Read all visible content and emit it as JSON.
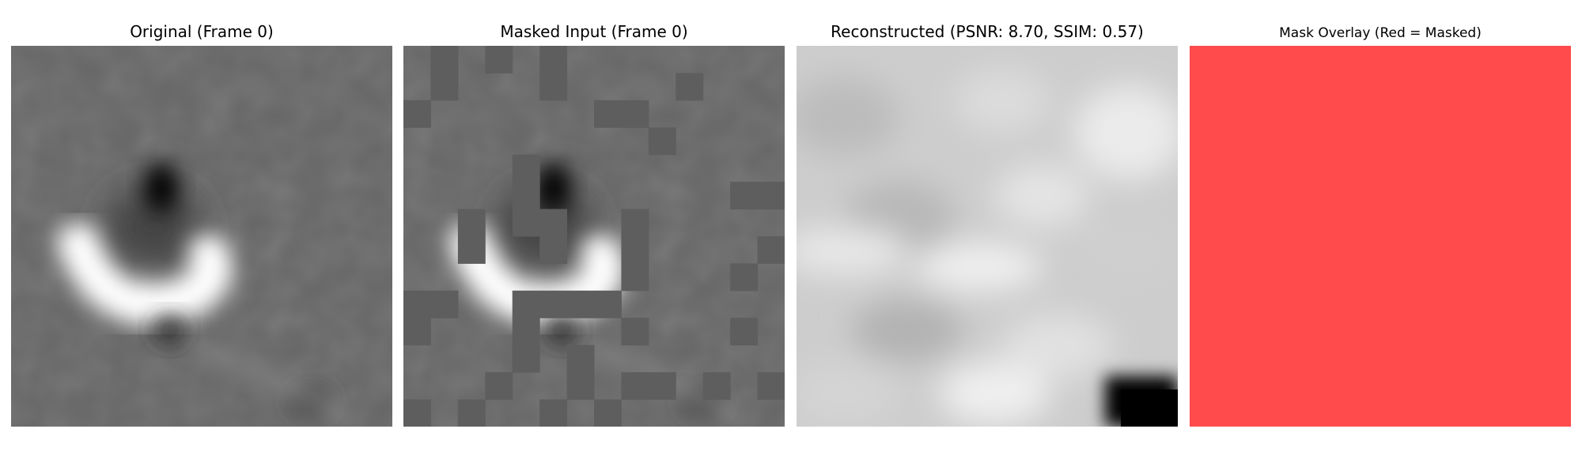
{
  "panels": [
    {
      "title": "Original (Frame 0)"
    },
    {
      "title": "Masked Input (Frame 0)"
    },
    {
      "title": "Reconstructed (PSNR: 8.70, SSIM: 0.57)"
    },
    {
      "title": "Mask Overlay (Red = Masked)"
    }
  ],
  "colors": {
    "mask_red": "#ff4b4b",
    "mask_fill_gray": "#5e5e5e",
    "background_gray": "#666666"
  },
  "grid_size": 14,
  "visible_patches": [
    [
      0,
      1
    ],
    [
      0,
      3
    ],
    [
      0,
      5
    ],
    [
      1,
      1
    ],
    [
      1,
      5
    ],
    [
      1,
      10
    ],
    [
      2,
      0
    ],
    [
      2,
      7
    ],
    [
      2,
      8
    ],
    [
      3,
      9
    ],
    [
      4,
      4
    ],
    [
      5,
      4
    ],
    [
      5,
      12
    ],
    [
      5,
      13
    ],
    [
      6,
      2
    ],
    [
      6,
      4
    ],
    [
      6,
      5
    ],
    [
      6,
      8
    ],
    [
      7,
      2
    ],
    [
      7,
      5
    ],
    [
      7,
      8
    ],
    [
      7,
      13
    ],
    [
      8,
      8
    ],
    [
      8,
      12
    ],
    [
      9,
      0
    ],
    [
      9,
      1
    ],
    [
      9,
      4
    ],
    [
      9,
      5
    ],
    [
      9,
      6
    ],
    [
      9,
      7
    ],
    [
      10,
      0
    ],
    [
      10,
      4
    ],
    [
      10,
      8
    ],
    [
      10,
      12
    ],
    [
      11,
      4
    ],
    [
      11,
      6
    ],
    [
      12,
      3
    ],
    [
      12,
      6
    ],
    [
      12,
      8
    ],
    [
      12,
      9
    ],
    [
      12,
      11
    ],
    [
      12,
      13
    ],
    [
      13,
      0
    ],
    [
      13,
      2
    ],
    [
      13,
      5
    ],
    [
      13,
      7
    ]
  ]
}
